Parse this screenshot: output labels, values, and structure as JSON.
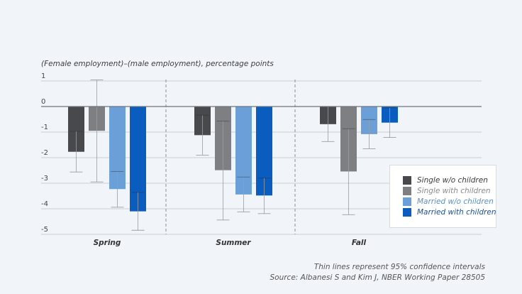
{
  "chart_data": {
    "type": "bar",
    "title": "",
    "ylabel": "(Female employment)–(male employment), percentage points",
    "xlabel": "",
    "ylim": [
      -5,
      1
    ],
    "yticks": [
      1,
      0,
      -1,
      -2,
      -3,
      -4,
      -5
    ],
    "grid": true,
    "legend_position": "bottom-right",
    "categories": [
      "Spring",
      "Summer",
      "Fall"
    ],
    "series": [
      {
        "name": "Single w/o children",
        "color": "#48494c",
        "values": [
          -1.77,
          -1.12,
          -0.69
        ],
        "ci_low": [
          -2.56,
          -1.9,
          -1.37
        ],
        "ci_high": [
          -0.97,
          -0.34,
          0.0
        ]
      },
      {
        "name": "Single with children",
        "color": "#7e7f82",
        "values": [
          -0.95,
          -2.49,
          -2.54
        ],
        "ci_low": [
          -2.95,
          -4.44,
          -4.23
        ],
        "ci_high": [
          1.04,
          -0.57,
          -0.87
        ]
      },
      {
        "name": "Married w/o children",
        "color": "#6a9fd8",
        "values": [
          -3.23,
          -3.44,
          -1.08
        ],
        "ci_low": [
          -3.94,
          -4.12,
          -1.65
        ],
        "ci_high": [
          -2.54,
          -2.76,
          -0.51
        ]
      },
      {
        "name": "Married with children",
        "color": "#0a5cbf",
        "values": [
          -4.1,
          -3.48,
          -0.63
        ],
        "ci_low": [
          -4.84,
          -4.19,
          -1.21
        ],
        "ci_high": [
          -3.36,
          -2.8,
          -0.05
        ]
      }
    ],
    "legend_text_colors": [
      "#3a3a3c",
      "#8a8b8e",
      "#5b8fcb",
      "#1a4f9a"
    ]
  },
  "notes": {
    "ci_note": "Thin lines represent 95% confidence intervals",
    "source": "Source:  Albanesi S and Kim J, NBER Working Paper 28505"
  }
}
